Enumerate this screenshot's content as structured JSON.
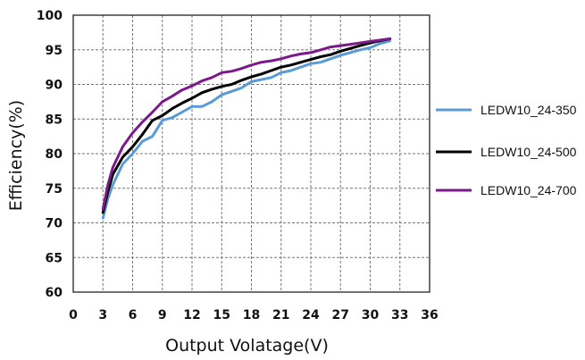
{
  "chart_data": {
    "type": "line",
    "xlabel": "Output Volatage(V)",
    "ylabel": "Efficiency(%)",
    "xlim": [
      0,
      36
    ],
    "ylim": [
      60,
      100
    ],
    "xticks": [
      0,
      3,
      6,
      9,
      12,
      15,
      18,
      21,
      24,
      27,
      30,
      33,
      36
    ],
    "yticks": [
      60,
      65,
      70,
      75,
      80,
      85,
      90,
      95,
      100
    ],
    "grid": true,
    "legend_position": "right",
    "series": [
      {
        "name": "LEDW10_24-350",
        "color": "#5b9bd5",
        "x": [
          3,
          3.5,
          4,
          5,
          6,
          7,
          8,
          9,
          10,
          11,
          12,
          13,
          14,
          15,
          16,
          17,
          18,
          19,
          20,
          21,
          22,
          23,
          24,
          25,
          26,
          27,
          28,
          29,
          30,
          31,
          32
        ],
        "y": [
          70.7,
          73.5,
          75.5,
          78.5,
          80,
          81.8,
          82.5,
          84.8,
          85.2,
          86,
          86.8,
          86.8,
          87.5,
          88.5,
          89,
          89.5,
          90.4,
          90.7,
          91,
          91.7,
          92,
          92.5,
          93,
          93.2,
          93.7,
          94.2,
          94.6,
          95,
          95.3,
          95.9,
          96.3
        ]
      },
      {
        "name": "LEDW10_24-500",
        "color": "#000000",
        "x": [
          3,
          3.5,
          4,
          5,
          6,
          7,
          8,
          9,
          10,
          11,
          12,
          13,
          14,
          15,
          16,
          17,
          18,
          19,
          20,
          21,
          22,
          23,
          24,
          25,
          26,
          27,
          28,
          29,
          30,
          31,
          32
        ],
        "y": [
          71.5,
          74.5,
          77,
          79.5,
          81,
          82.8,
          84.8,
          85.5,
          86.5,
          87.3,
          88,
          88.8,
          89.3,
          89.7,
          90,
          90.6,
          91.1,
          91.5,
          92,
          92.5,
          92.8,
          93.2,
          93.6,
          94,
          94.3,
          94.8,
          95.2,
          95.6,
          96,
          96.3,
          96.6
        ]
      },
      {
        "name": "LEDW10_24-700",
        "color": "#7b1a8a",
        "x": [
          3,
          3.5,
          4,
          5,
          6,
          7,
          8,
          9,
          10,
          11,
          12,
          13,
          14,
          15,
          16,
          17,
          18,
          19,
          20,
          21,
          22,
          23,
          24,
          25,
          26,
          27,
          28,
          29,
          30,
          31,
          32
        ],
        "y": [
          72,
          75.5,
          78,
          81,
          83,
          84.6,
          86,
          87.5,
          88.3,
          89.2,
          89.8,
          90.5,
          91,
          91.7,
          91.9,
          92.3,
          92.8,
          93.2,
          93.4,
          93.7,
          94.1,
          94.4,
          94.6,
          95,
          95.4,
          95.6,
          95.8,
          96,
          96.2,
          96.4,
          96.6
        ]
      }
    ]
  }
}
